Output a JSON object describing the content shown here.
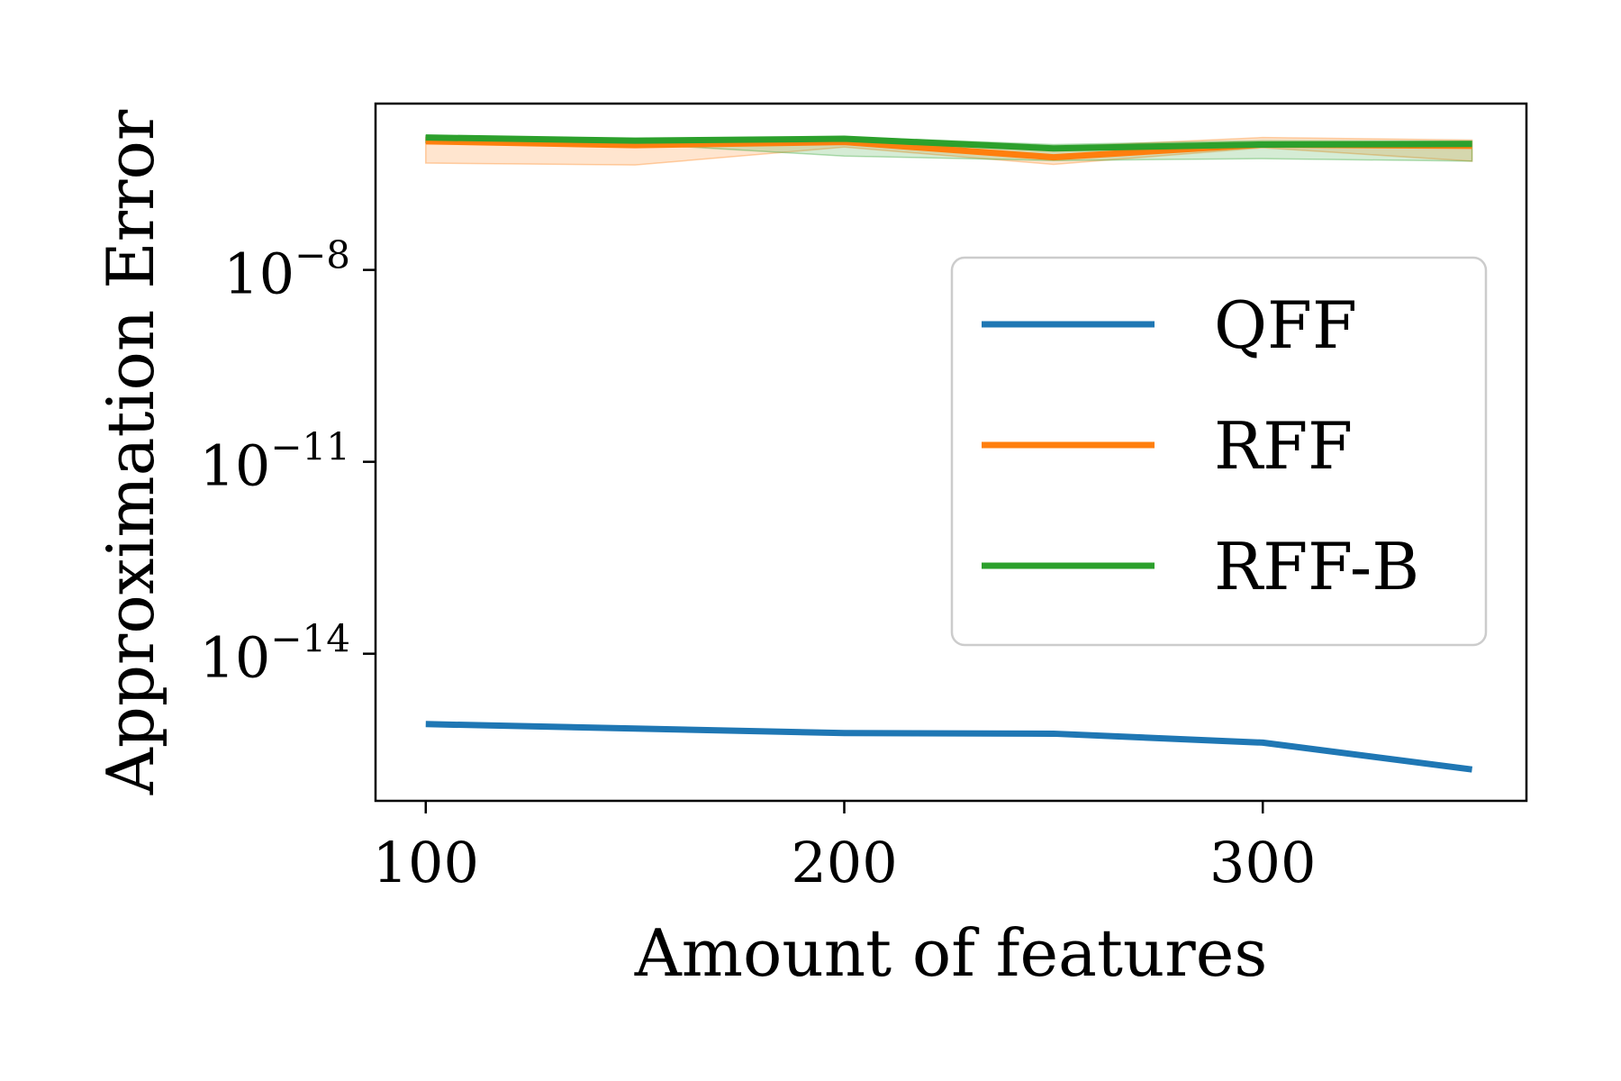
{
  "chart_data": {
    "type": "line",
    "xlabel": "Amount of features",
    "ylabel": "Approximation Error",
    "yscale": "log",
    "xlim": [
      88,
      363
    ],
    "ylim_exp": [
      -16.3,
      -5.4
    ],
    "x_ticks": [
      100,
      200,
      300
    ],
    "y_ticks": [
      {
        "base": "10",
        "exp": "−8",
        "value_exp": -8
      },
      {
        "base": "10",
        "exp": "−11",
        "value_exp": -11
      },
      {
        "base": "10",
        "exp": "−14",
        "value_exp": -14
      }
    ],
    "x": [
      100,
      150,
      200,
      250,
      300,
      350
    ],
    "series": [
      {
        "name": "QFF",
        "color": "#1f77b4",
        "log10_values": [
          -15.1,
          -15.17,
          -15.24,
          -15.25,
          -15.39,
          -15.81
        ],
        "band_low": null,
        "band_high": null
      },
      {
        "name": "RFF",
        "color": "#ff7f0e",
        "log10_values": [
          -5.99,
          -6.05,
          -6.0,
          -6.24,
          -6.04,
          -6.06
        ],
        "band_low": [
          -6.33,
          -6.36,
          -6.08,
          -6.35,
          -6.09,
          -6.3
        ],
        "band_high": [
          -5.93,
          -5.98,
          -5.95,
          -6.08,
          -5.93,
          -5.97
        ]
      },
      {
        "name": "RFF-B",
        "color": "#2ca02c",
        "log10_values": [
          -5.93,
          -5.98,
          -5.95,
          -6.1,
          -6.04,
          -6.03
        ],
        "band_low": [
          -6.01,
          -6.03,
          -6.22,
          -6.29,
          -6.26,
          -6.3
        ],
        "band_high": [
          -5.9,
          -5.95,
          -5.92,
          -6.04,
          -5.98,
          -5.99
        ]
      }
    ],
    "legend_position": "upper-right",
    "grid": false
  }
}
